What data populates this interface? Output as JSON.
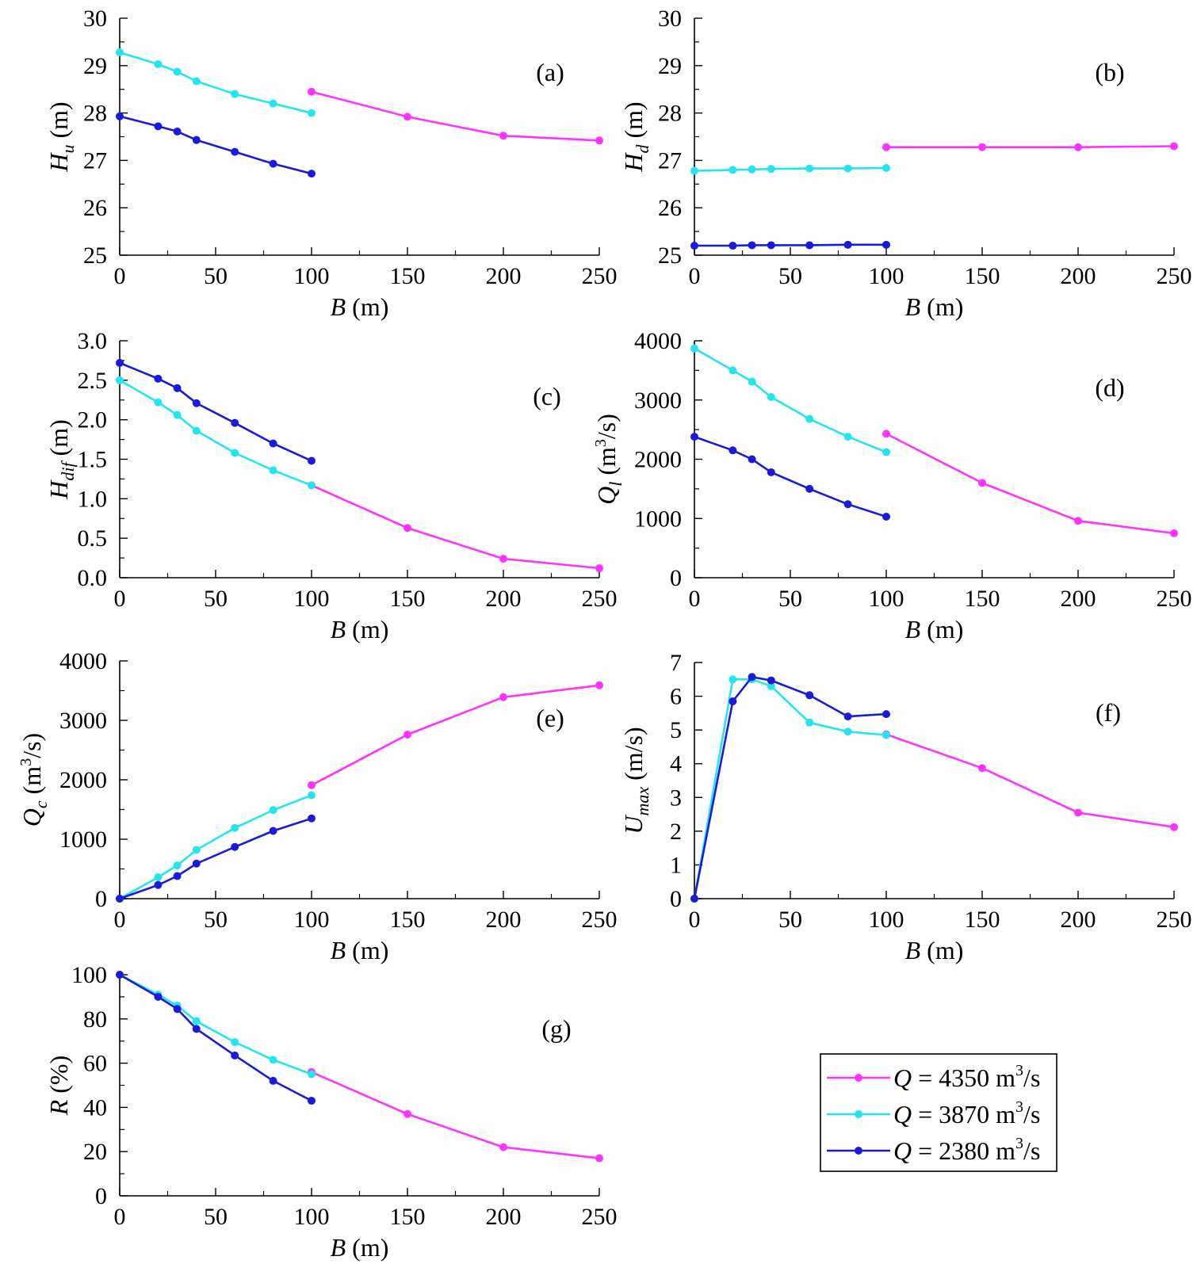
{
  "legend": {
    "entries": [
      {
        "prefix": "Q",
        "text": " = 4350 m",
        "sup": "3",
        "suffix": "/s",
        "color": "#ff33ff"
      },
      {
        "prefix": "Q",
        "text": " = 3870 m",
        "sup": "3",
        "suffix": "/s",
        "color": "#22e5ee"
      },
      {
        "prefix": "Q",
        "text": " = 2380 m",
        "sup": "3",
        "suffix": "/s",
        "color": "#1a1adb"
      }
    ]
  },
  "chart_data": [
    {
      "id": "a",
      "type": "line",
      "label": "(a)",
      "ylabel": {
        "main": "H",
        "sub": "u",
        "unit": " (m)"
      },
      "xlabel": {
        "main": "B",
        "unit": " (m)"
      },
      "xlim": [
        0,
        250
      ],
      "ylim": [
        25,
        30
      ],
      "xticks": [
        0,
        50,
        100,
        150,
        200,
        250
      ],
      "xtick_labels": [
        "0",
        "50",
        "100",
        "150",
        "200",
        "250"
      ],
      "yticks": [
        25,
        26,
        27,
        28,
        29,
        30
      ],
      "ytick_labels": [
        "25",
        "26",
        "27",
        "28",
        "29",
        "30"
      ],
      "series": [
        {
          "name": "Q = 4350 m3/s",
          "color": "#ff33ff",
          "x": [
            100,
            150,
            200,
            250
          ],
          "y": [
            28.45,
            27.92,
            27.52,
            27.42
          ]
        },
        {
          "name": "Q = 3870 m3/s",
          "color": "#22e5ee",
          "x": [
            0,
            20,
            30,
            40,
            60,
            80,
            100
          ],
          "y": [
            29.28,
            29.03,
            28.87,
            28.67,
            28.4,
            28.2,
            28.0
          ]
        },
        {
          "name": "Q = 2380 m3/s",
          "color": "#1a1adb",
          "x": [
            0,
            20,
            30,
            40,
            60,
            80,
            100
          ],
          "y": [
            27.93,
            27.72,
            27.61,
            27.43,
            27.18,
            26.93,
            26.72
          ]
        }
      ]
    },
    {
      "id": "b",
      "type": "line",
      "label": "(b)",
      "ylabel": {
        "main": "H",
        "sub": "d",
        "unit": " (m)"
      },
      "xlabel": {
        "main": "B",
        "unit": " (m)"
      },
      "xlim": [
        0,
        250
      ],
      "ylim": [
        25,
        30
      ],
      "xticks": [
        0,
        50,
        100,
        150,
        200,
        250
      ],
      "xtick_labels": [
        "0",
        "50",
        "100",
        "150",
        "200",
        "250"
      ],
      "yticks": [
        25,
        26,
        27,
        28,
        29,
        30
      ],
      "ytick_labels": [
        "25",
        "26",
        "27",
        "28",
        "29",
        "30"
      ],
      "series": [
        {
          "name": "Q = 4350 m3/s",
          "color": "#ff33ff",
          "x": [
            100,
            150,
            200,
            250
          ],
          "y": [
            27.28,
            27.28,
            27.28,
            27.3
          ]
        },
        {
          "name": "Q = 3870 m3/s",
          "color": "#22e5ee",
          "x": [
            0,
            20,
            30,
            40,
            60,
            80,
            100
          ],
          "y": [
            26.78,
            26.8,
            26.81,
            26.82,
            26.83,
            26.83,
            26.84
          ]
        },
        {
          "name": "Q = 2380 m3/s",
          "color": "#1a1adb",
          "x": [
            0,
            20,
            30,
            40,
            60,
            80,
            100
          ],
          "y": [
            25.2,
            25.2,
            25.21,
            25.21,
            25.21,
            25.22,
            25.22
          ]
        }
      ]
    },
    {
      "id": "c",
      "type": "line",
      "label": "(c)",
      "ylabel": {
        "main": "H",
        "sub": "dif",
        "unit": " (m)"
      },
      "xlabel": {
        "main": "B",
        "unit": " (m)"
      },
      "xlim": [
        0,
        250
      ],
      "ylim": [
        0,
        3
      ],
      "xticks": [
        0,
        50,
        100,
        150,
        200,
        250
      ],
      "xtick_labels": [
        "0",
        "50",
        "100",
        "150",
        "200",
        "250"
      ],
      "yticks": [
        0,
        0.5,
        1,
        1.5,
        2,
        2.5,
        3
      ],
      "ytick_labels": [
        "0.0",
        "0.5",
        "1.0",
        "1.5",
        "2.0",
        "2.5",
        "3.0"
      ],
      "series": [
        {
          "name": "Q = 4350 m3/s",
          "color": "#ff33ff",
          "x": [
            100,
            150,
            200,
            250
          ],
          "y": [
            1.17,
            0.63,
            0.24,
            0.12
          ]
        },
        {
          "name": "Q = 3870 m3/s",
          "color": "#22e5ee",
          "x": [
            0,
            20,
            30,
            40,
            60,
            80,
            100
          ],
          "y": [
            2.5,
            2.22,
            2.06,
            1.86,
            1.58,
            1.36,
            1.17
          ]
        },
        {
          "name": "Q = 2380 m3/s",
          "color": "#1a1adb",
          "x": [
            0,
            20,
            30,
            40,
            60,
            80,
            100
          ],
          "y": [
            2.72,
            2.52,
            2.4,
            2.21,
            1.96,
            1.7,
            1.48
          ]
        }
      ]
    },
    {
      "id": "d",
      "type": "line",
      "label": "(d)",
      "ylabel": {
        "main": "Q",
        "sub": "l",
        "unit": " (m",
        "sup": "3",
        "tail": "/s)"
      },
      "xlabel": {
        "main": "B",
        "unit": " (m)"
      },
      "xlim": [
        0,
        250
      ],
      "ylim": [
        0,
        4000
      ],
      "xticks": [
        0,
        50,
        100,
        150,
        200,
        250
      ],
      "xtick_labels": [
        "0",
        "50",
        "100",
        "150",
        "200",
        "250"
      ],
      "yticks": [
        0,
        1000,
        2000,
        3000,
        4000
      ],
      "ytick_labels": [
        "0",
        "1000",
        "2000",
        "3000",
        "4000"
      ],
      "series": [
        {
          "name": "Q = 4350 m3/s",
          "color": "#ff33ff",
          "x": [
            100,
            150,
            200,
            250
          ],
          "y": [
            2430,
            1600,
            960,
            750
          ]
        },
        {
          "name": "Q = 3870 m3/s",
          "color": "#22e5ee",
          "x": [
            0,
            20,
            30,
            40,
            60,
            80,
            100
          ],
          "y": [
            3870,
            3500,
            3310,
            3050,
            2680,
            2380,
            2120
          ]
        },
        {
          "name": "Q = 2380 m3/s",
          "color": "#1a1adb",
          "x": [
            0,
            20,
            30,
            40,
            60,
            80,
            100
          ],
          "y": [
            2380,
            2150,
            2000,
            1780,
            1500,
            1240,
            1030
          ]
        }
      ]
    },
    {
      "id": "e",
      "type": "line",
      "label": "(e)",
      "ylabel": {
        "main": "Q",
        "sub": "c",
        "unit": " (m",
        "sup": "3",
        "tail": "/s)"
      },
      "xlabel": {
        "main": "B",
        "unit": " (m)"
      },
      "xlim": [
        0,
        250
      ],
      "ylim": [
        0,
        4000
      ],
      "xticks": [
        0,
        50,
        100,
        150,
        200,
        250
      ],
      "xtick_labels": [
        "0",
        "50",
        "100",
        "150",
        "200",
        "250"
      ],
      "yticks": [
        0,
        1000,
        2000,
        3000,
        4000
      ],
      "ytick_labels": [
        "0",
        "1000",
        "2000",
        "3000",
        "4000"
      ],
      "series": [
        {
          "name": "Q = 4350 m3/s",
          "color": "#ff33ff",
          "x": [
            100,
            150,
            200,
            250
          ],
          "y": [
            1910,
            2760,
            3390,
            3590
          ]
        },
        {
          "name": "Q = 3870 m3/s",
          "color": "#22e5ee",
          "x": [
            0,
            20,
            30,
            40,
            60,
            80,
            100
          ],
          "y": [
            0,
            360,
            560,
            820,
            1190,
            1490,
            1740
          ]
        },
        {
          "name": "Q = 2380 m3/s",
          "color": "#1a1adb",
          "x": [
            0,
            20,
            30,
            40,
            60,
            80,
            100
          ],
          "y": [
            0,
            230,
            380,
            590,
            870,
            1140,
            1350
          ]
        }
      ]
    },
    {
      "id": "f",
      "type": "line",
      "label": "(f)",
      "ylabel": {
        "main": "U",
        "sub": "max",
        "unit": " (m/s)"
      },
      "xlabel": {
        "main": "B",
        "unit": " (m)"
      },
      "xlim": [
        0,
        250
      ],
      "ylim": [
        0,
        7
      ],
      "xticks": [
        0,
        50,
        100,
        150,
        200,
        250
      ],
      "xtick_labels": [
        "0",
        "50",
        "100",
        "150",
        "200",
        "250"
      ],
      "yticks": [
        0,
        1,
        2,
        3,
        4,
        5,
        6,
        7
      ],
      "ytick_labels": [
        "0",
        "1",
        "2",
        "3",
        "4",
        "5",
        "6",
        "7"
      ],
      "series": [
        {
          "name": "Q = 4350 m3/s",
          "color": "#ff33ff",
          "x": [
            100,
            150,
            200,
            250
          ],
          "y": [
            4.87,
            3.87,
            2.55,
            2.12
          ]
        },
        {
          "name": "Q = 3870 m3/s",
          "color": "#22e5ee",
          "x": [
            0,
            20,
            30,
            40,
            60,
            80,
            100
          ],
          "y": [
            0,
            6.5,
            6.5,
            6.3,
            5.22,
            4.95,
            4.85
          ]
        },
        {
          "name": "Q = 2380 m3/s",
          "color": "#1a1adb",
          "x": [
            0,
            20,
            30,
            40,
            60,
            80,
            100
          ],
          "y": [
            0,
            5.85,
            6.57,
            6.47,
            6.03,
            5.4,
            5.47
          ]
        }
      ]
    },
    {
      "id": "g",
      "type": "line",
      "label": "(g)",
      "ylabel": {
        "main": "R",
        "sub": "",
        "unit": " (%)"
      },
      "xlabel": {
        "main": "B",
        "unit": " (m)"
      },
      "xlim": [
        0,
        250
      ],
      "ylim": [
        0,
        100
      ],
      "xticks": [
        0,
        50,
        100,
        150,
        200,
        250
      ],
      "xtick_labels": [
        "0",
        "50",
        "100",
        "150",
        "200",
        "250"
      ],
      "yticks": [
        0,
        20,
        40,
        60,
        80,
        100
      ],
      "ytick_labels": [
        "0",
        "20",
        "40",
        "60",
        "80",
        "100"
      ],
      "series": [
        {
          "name": "Q = 4350 m3/s",
          "color": "#ff33ff",
          "x": [
            100,
            150,
            200,
            250
          ],
          "y": [
            56,
            37,
            22,
            17
          ]
        },
        {
          "name": "Q = 3870 m3/s",
          "color": "#22e5ee",
          "x": [
            0,
            20,
            30,
            40,
            60,
            80,
            100
          ],
          "y": [
            100,
            91,
            86,
            79,
            69.5,
            61.5,
            55
          ]
        },
        {
          "name": "Q = 2380 m3/s",
          "color": "#1a1adb",
          "x": [
            0,
            20,
            30,
            40,
            60,
            80,
            100
          ],
          "y": [
            100,
            90,
            84.5,
            75.5,
            63.5,
            52,
            43
          ]
        }
      ]
    }
  ]
}
